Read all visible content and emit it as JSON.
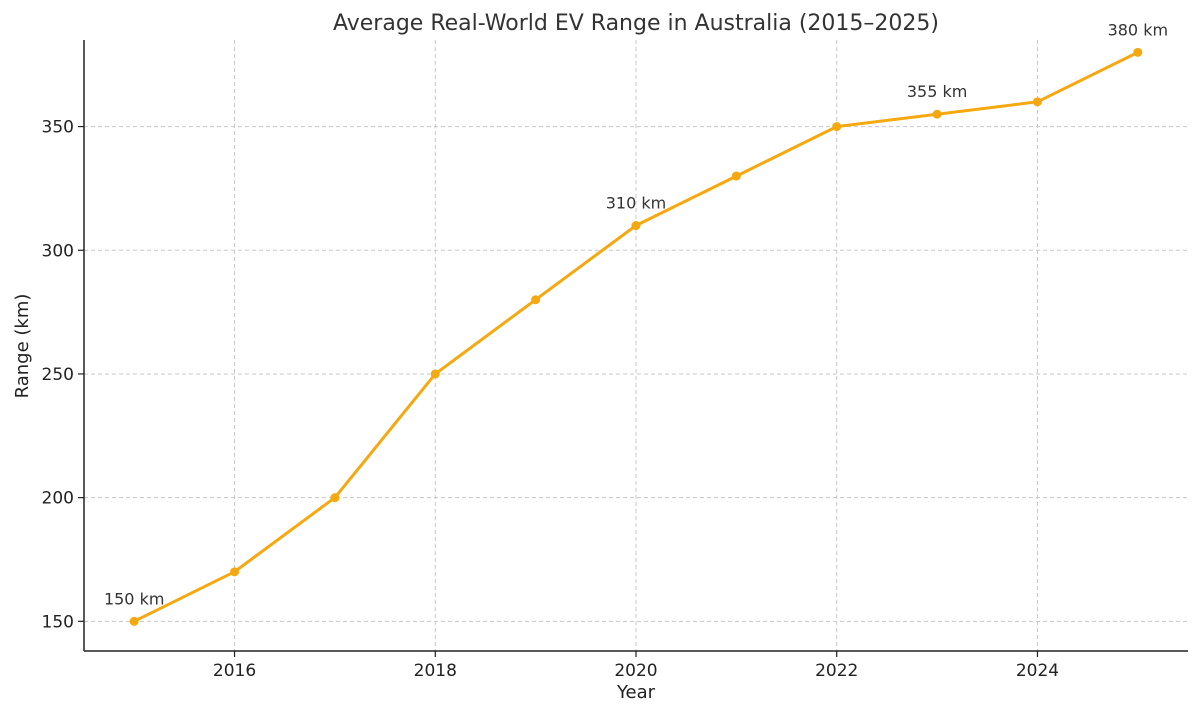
{
  "chart_data": {
    "type": "line",
    "title": "Average Real-World EV Range in Australia (2015–2025)",
    "xlabel": "Year",
    "ylabel": "Range (km)",
    "x": [
      2015,
      2016,
      2017,
      2018,
      2019,
      2020,
      2021,
      2022,
      2023,
      2024,
      2025
    ],
    "series": [
      {
        "values": [
          150,
          170,
          200,
          250,
          280,
          310,
          330,
          350,
          355,
          360,
          380
        ],
        "color": "#f5a80f"
      }
    ],
    "xlim": [
      2014.5,
      2025.5
    ],
    "ylim": [
      138,
      385
    ],
    "xticks": [
      2016,
      2018,
      2020,
      2022,
      2024
    ],
    "yticks": [
      150,
      200,
      250,
      300,
      350
    ],
    "grid": true,
    "annotations": [
      {
        "x": 2015,
        "y": 150,
        "text": "150 km"
      },
      {
        "x": 2020,
        "y": 310,
        "text": "310 km"
      },
      {
        "x": 2023,
        "y": 355,
        "text": "355 km"
      },
      {
        "x": 2025,
        "y": 380,
        "text": "380 km"
      }
    ]
  }
}
